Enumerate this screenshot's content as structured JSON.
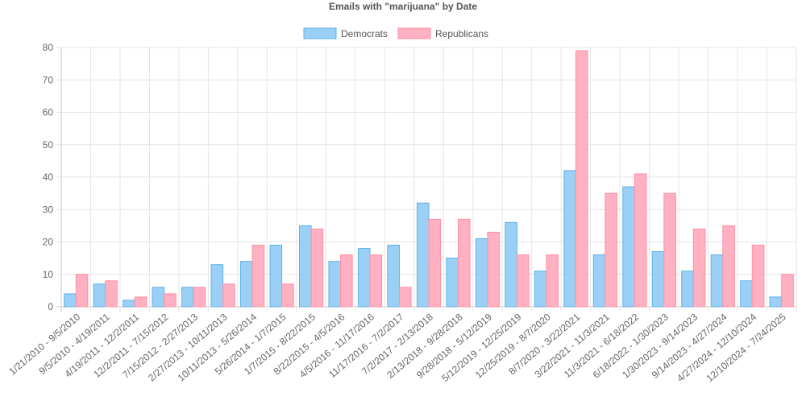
{
  "chart_data": {
    "type": "bar",
    "title": "Emails with \"marijuana\" by Date",
    "xlabel": "",
    "ylabel": "",
    "ylim": [
      0,
      80
    ],
    "yticks": [
      0,
      10,
      20,
      30,
      40,
      50,
      60,
      70,
      80
    ],
    "grid": true,
    "legend_position": "top-center",
    "categories": [
      "1/21/2010 - 9/5/2010",
      "9/5/2010 - 4/19/2011",
      "4/19/2011 - 12/2/2011",
      "12/2/2011 - 7/15/2012",
      "7/15/2012 - 2/27/2013",
      "2/27/2013 - 10/11/2013",
      "10/11/2013 - 5/26/2014",
      "5/26/2014 - 1/7/2015",
      "1/7/2015 - 8/22/2015",
      "8/22/2015 - 4/5/2016",
      "4/5/2016 - 11/17/2016",
      "11/17/2016 - 7/2/2017",
      "7/2/2017 - 2/13/2018",
      "2/13/2018 - 9/28/2018",
      "9/28/2018 - 5/12/2019",
      "5/12/2019 - 12/25/2019",
      "12/25/2019 - 8/7/2020",
      "8/7/2020 - 3/22/2021",
      "3/22/2021 - 11/3/2021",
      "11/3/2021 - 6/18/2022",
      "6/18/2022 - 1/30/2023",
      "1/30/2023 - 9/14/2023",
      "9/14/2023 - 4/27/2024",
      "4/27/2024 - 12/10/2024",
      "12/10/2024 - 7/24/2025"
    ],
    "series": [
      {
        "name": "Democrats",
        "color": "#9ad0f5",
        "border": "#5fb0e8",
        "values": [
          4,
          7,
          2,
          6,
          6,
          13,
          14,
          19,
          25,
          14,
          18,
          19,
          32,
          15,
          21,
          26,
          11,
          42,
          16,
          37,
          17,
          11,
          16,
          8,
          3
        ]
      },
      {
        "name": "Republicans",
        "color": "#ffb1c1",
        "border": "#ff8fa6",
        "values": [
          10,
          8,
          3,
          4,
          6,
          7,
          19,
          7,
          24,
          16,
          16,
          6,
          27,
          27,
          23,
          16,
          16,
          79,
          35,
          41,
          35,
          24,
          25,
          19,
          10
        ]
      }
    ]
  }
}
